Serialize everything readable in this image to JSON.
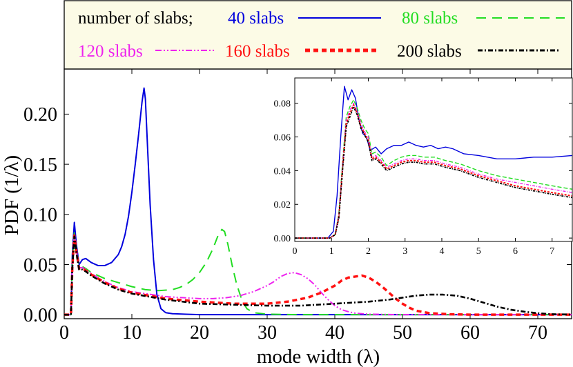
{
  "chart_data": [
    {
      "type": "line",
      "name": "main",
      "xlabel": "mode width (λ)",
      "ylabel": "PDF (1/λ)",
      "xlim": [
        0,
        75
      ],
      "ylim": [
        -0.004,
        0.245
      ],
      "xticks": [
        0,
        10,
        20,
        30,
        40,
        50,
        60,
        70
      ],
      "yticks": [
        0.0,
        0.05,
        0.1,
        0.15,
        0.2
      ],
      "ytick_labels": [
        "0.00",
        "0.05",
        "0.10",
        "0.15",
        "0.20"
      ],
      "legend": {
        "title": "number of slabs;",
        "entries": [
          "40 slabs",
          "80 slabs",
          "120 slabs",
          "160 slabs",
          "200 slabs"
        ],
        "placement": "top"
      },
      "series": [
        {
          "name": "40 slabs",
          "color": "#0000dd",
          "dash": "none",
          "x": [
            0,
            1,
            1.2,
            1.5,
            1.8,
            2.2,
            2.7,
            3.2,
            4,
            5,
            6,
            7,
            8,
            8.5,
            9,
            9.5,
            10,
            10.5,
            11,
            11.5,
            11.8,
            12,
            12.3,
            12.7,
            13.2,
            13.7,
            14.3,
            15,
            16,
            18,
            20,
            25,
            30,
            40,
            50,
            60,
            70,
            75
          ],
          "y": [
            0,
            0,
            0.06,
            0.092,
            0.07,
            0.05,
            0.055,
            0.056,
            0.052,
            0.049,
            0.049,
            0.052,
            0.06,
            0.068,
            0.08,
            0.098,
            0.122,
            0.15,
            0.18,
            0.212,
            0.226,
            0.215,
            0.17,
            0.11,
            0.055,
            0.02,
            0.006,
            0.002,
            0.001,
            0.0005,
            0,
            0,
            0,
            0,
            0,
            0,
            0,
            0
          ]
        },
        {
          "name": "80 slabs",
          "color": "#22dd22",
          "dash": "14,9",
          "x": [
            0,
            1,
            1.2,
            1.5,
            1.8,
            2.2,
            2.7,
            3.2,
            4,
            6,
            8,
            10,
            12,
            14,
            16,
            17,
            18,
            19,
            20,
            21,
            22,
            22.8,
            23.3,
            23.7,
            24.2,
            24.8,
            25.5,
            26.3,
            27,
            28,
            30,
            35,
            40,
            50,
            60,
            75
          ],
          "y": [
            0,
            0,
            0.05,
            0.082,
            0.065,
            0.048,
            0.048,
            0.046,
            0.042,
            0.036,
            0.032,
            0.028,
            0.025,
            0.024,
            0.025,
            0.027,
            0.03,
            0.035,
            0.042,
            0.052,
            0.066,
            0.08,
            0.085,
            0.083,
            0.07,
            0.05,
            0.03,
            0.014,
            0.006,
            0.002,
            0.0005,
            0,
            0,
            0,
            0,
            0
          ]
        },
        {
          "name": "120 slabs",
          "color": "#ee22ee",
          "dash": "9,3,2,3,2,3",
          "x": [
            0,
            1,
            1.2,
            1.5,
            1.8,
            2.2,
            2.7,
            3.2,
            4,
            6,
            8,
            10,
            15,
            20,
            22,
            24,
            26,
            28,
            30,
            31,
            32,
            33,
            34,
            35,
            36,
            37,
            38,
            39,
            40,
            41,
            42,
            43,
            45,
            50,
            60,
            75
          ],
          "y": [
            0,
            0,
            0.048,
            0.08,
            0.064,
            0.047,
            0.047,
            0.045,
            0.041,
            0.033,
            0.027,
            0.023,
            0.018,
            0.016,
            0.016,
            0.017,
            0.019,
            0.023,
            0.029,
            0.033,
            0.038,
            0.041,
            0.042,
            0.04,
            0.036,
            0.03,
            0.022,
            0.015,
            0.009,
            0.005,
            0.003,
            0.0015,
            0.0005,
            0,
            0,
            0
          ]
        },
        {
          "name": "160 slabs",
          "color": "#ff1111",
          "dash": "7,5",
          "x": [
            0,
            1,
            1.2,
            1.5,
            1.8,
            2.2,
            2.7,
            3.2,
            4,
            6,
            8,
            10,
            15,
            20,
            25,
            30,
            33,
            36,
            38,
            40,
            41,
            42,
            43,
            44,
            45,
            46,
            47,
            48,
            49,
            50,
            51,
            52,
            54,
            57,
            60,
            75
          ],
          "y": [
            0,
            0,
            0.047,
            0.079,
            0.063,
            0.046,
            0.046,
            0.044,
            0.04,
            0.032,
            0.026,
            0.022,
            0.016,
            0.013,
            0.011,
            0.011,
            0.013,
            0.017,
            0.022,
            0.029,
            0.034,
            0.037,
            0.038,
            0.039,
            0.037,
            0.033,
            0.028,
            0.022,
            0.016,
            0.011,
            0.007,
            0.004,
            0.0015,
            0.0005,
            0,
            0
          ]
        },
        {
          "name": "200 slabs",
          "color": "#000000",
          "dash": "7,3,2,3",
          "x": [
            0,
            1,
            1.2,
            1.5,
            1.8,
            2.2,
            2.7,
            3.2,
            4,
            6,
            8,
            10,
            15,
            20,
            25,
            30,
            35,
            40,
            45,
            48,
            50,
            52,
            54,
            55,
            56,
            57,
            58,
            60,
            62,
            64,
            66,
            68,
            70,
            72,
            75
          ],
          "y": [
            0,
            0,
            0.046,
            0.078,
            0.062,
            0.045,
            0.045,
            0.043,
            0.039,
            0.031,
            0.025,
            0.021,
            0.015,
            0.011,
            0.01,
            0.009,
            0.009,
            0.011,
            0.013,
            0.015,
            0.017,
            0.019,
            0.02,
            0.02,
            0.02,
            0.0195,
            0.019,
            0.016,
            0.012,
            0.008,
            0.005,
            0.003,
            0.0015,
            0.0005,
            0.0002
          ]
        }
      ]
    },
    {
      "type": "line",
      "name": "inset",
      "xlim": [
        0,
        7.55
      ],
      "ylim": [
        -0.002,
        0.095
      ],
      "xticks": [
        0,
        1,
        2,
        3,
        4,
        5,
        6,
        7
      ],
      "yticks": [
        0.0,
        0.02,
        0.04,
        0.06,
        0.08
      ],
      "ytick_labels": [
        "0.00",
        "0.02",
        "0.04",
        "0.06",
        "0.08"
      ],
      "series": [
        {
          "name": "40 slabs",
          "color": "#0000dd",
          "dash": "none",
          "x": [
            0,
            0.9,
            1.05,
            1.15,
            1.25,
            1.35,
            1.45,
            1.55,
            1.65,
            1.75,
            1.85,
            1.95,
            2.05,
            2.2,
            2.35,
            2.5,
            2.7,
            2.9,
            3.1,
            3.3,
            3.5,
            3.7,
            3.9,
            4.1,
            4.3,
            4.6,
            5,
            5.5,
            6,
            6.5,
            7,
            7.55
          ],
          "y": [
            0,
            0,
            0.004,
            0.025,
            0.06,
            0.09,
            0.082,
            0.088,
            0.083,
            0.07,
            0.062,
            0.06,
            0.052,
            0.054,
            0.05,
            0.053,
            0.055,
            0.055,
            0.057,
            0.055,
            0.054,
            0.055,
            0.053,
            0.054,
            0.053,
            0.05,
            0.049,
            0.047,
            0.047,
            0.048,
            0.048,
            0.049
          ]
        },
        {
          "name": "80 slabs",
          "color": "#22dd22",
          "dash": "6,3",
          "x": [
            0,
            0.95,
            1.1,
            1.2,
            1.3,
            1.4,
            1.5,
            1.6,
            1.7,
            1.8,
            1.9,
            2,
            2.1,
            2.2,
            2.35,
            2.5,
            2.7,
            2.9,
            3.1,
            3.3,
            3.5,
            3.8,
            4.1,
            4.5,
            5,
            5.5,
            6,
            6.5,
            7,
            7.55
          ],
          "y": [
            0,
            0,
            0.002,
            0.015,
            0.045,
            0.072,
            0.078,
            0.082,
            0.077,
            0.07,
            0.065,
            0.062,
            0.05,
            0.051,
            0.048,
            0.043,
            0.046,
            0.048,
            0.049,
            0.049,
            0.048,
            0.048,
            0.046,
            0.044,
            0.04,
            0.037,
            0.035,
            0.033,
            0.031,
            0.029
          ]
        },
        {
          "name": "120 slabs",
          "color": "#ee22ee",
          "dash": "4,2,1,2",
          "x": [
            0,
            0.95,
            1.1,
            1.2,
            1.3,
            1.4,
            1.5,
            1.6,
            1.7,
            1.8,
            1.9,
            2,
            2.1,
            2.2,
            2.35,
            2.5,
            2.7,
            2.9,
            3.1,
            3.3,
            3.5,
            3.8,
            4.1,
            4.5,
            5,
            5.5,
            6,
            6.5,
            7,
            7.55
          ],
          "y": [
            0,
            0,
            0.002,
            0.014,
            0.043,
            0.07,
            0.076,
            0.08,
            0.075,
            0.068,
            0.063,
            0.06,
            0.048,
            0.049,
            0.046,
            0.042,
            0.044,
            0.046,
            0.047,
            0.047,
            0.046,
            0.046,
            0.044,
            0.042,
            0.038,
            0.035,
            0.033,
            0.031,
            0.029,
            0.027
          ]
        },
        {
          "name": "160 slabs",
          "color": "#ff1111",
          "dash": "3,2",
          "x": [
            0,
            0.95,
            1.1,
            1.2,
            1.3,
            1.4,
            1.5,
            1.6,
            1.7,
            1.8,
            1.9,
            2,
            2.1,
            2.2,
            2.35,
            2.5,
            2.7,
            2.9,
            3.1,
            3.3,
            3.5,
            3.8,
            4.1,
            4.5,
            5,
            5.5,
            6,
            6.5,
            7,
            7.55
          ],
          "y": [
            0,
            0,
            0.002,
            0.013,
            0.042,
            0.068,
            0.074,
            0.079,
            0.074,
            0.066,
            0.062,
            0.058,
            0.047,
            0.048,
            0.045,
            0.041,
            0.043,
            0.045,
            0.046,
            0.046,
            0.045,
            0.045,
            0.043,
            0.041,
            0.037,
            0.034,
            0.031,
            0.029,
            0.027,
            0.025
          ]
        },
        {
          "name": "200 slabs",
          "color": "#000000",
          "dash": "3,1.5,1,1.5",
          "x": [
            0,
            0.95,
            1.1,
            1.2,
            1.3,
            1.4,
            1.5,
            1.6,
            1.7,
            1.8,
            1.9,
            2,
            2.1,
            2.2,
            2.35,
            2.5,
            2.7,
            2.9,
            3.1,
            3.3,
            3.5,
            3.8,
            4.1,
            4.5,
            5,
            5.5,
            6,
            6.5,
            7,
            7.55
          ],
          "y": [
            0,
            0,
            0.002,
            0.012,
            0.04,
            0.066,
            0.072,
            0.078,
            0.073,
            0.065,
            0.061,
            0.057,
            0.046,
            0.047,
            0.044,
            0.04,
            0.042,
            0.044,
            0.045,
            0.045,
            0.044,
            0.044,
            0.042,
            0.04,
            0.036,
            0.033,
            0.03,
            0.028,
            0.026,
            0.024
          ]
        }
      ]
    }
  ]
}
